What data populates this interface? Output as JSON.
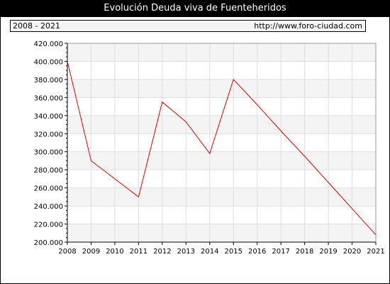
{
  "title": "Evolución Deuda viva de Fuenteheridos",
  "period": "2008 - 2021",
  "source_url": "http://www.foro-ciudad.com",
  "colors": {
    "line": "#e00000",
    "band": "#f4f4f4",
    "grid": "#dddddd"
  },
  "chart_data": {
    "type": "line",
    "title": "Evolución Deuda viva de Fuenteheridos",
    "x": [
      2008,
      2009,
      2010,
      2011,
      2012,
      2013,
      2014,
      2015,
      2016,
      2017,
      2018,
      2019,
      2020,
      2021
    ],
    "x_tick_labels": [
      "2008",
      "2009",
      "2010",
      "2011",
      "2012",
      "2013",
      "2014",
      "2015",
      "2016",
      "2017",
      "2018",
      "2019",
      "2020",
      "2021"
    ],
    "series": [
      {
        "values": [
          400000,
          290000,
          270000,
          250000,
          355000,
          333000,
          298000,
          380000,
          352000,
          323000,
          295000,
          266000,
          237000,
          208000
        ]
      }
    ],
    "ylim": [
      200000,
      420000
    ],
    "y_ticks": [
      200000,
      220000,
      240000,
      260000,
      280000,
      300000,
      320000,
      340000,
      360000,
      380000,
      400000,
      420000
    ],
    "y_tick_labels": [
      "200.000",
      "220.000",
      "240.000",
      "260.000",
      "280.000",
      "300.000",
      "320.000",
      "340.000",
      "360.000",
      "380.000",
      "400.000",
      "420.000"
    ],
    "grid": true,
    "legend": "none"
  }
}
